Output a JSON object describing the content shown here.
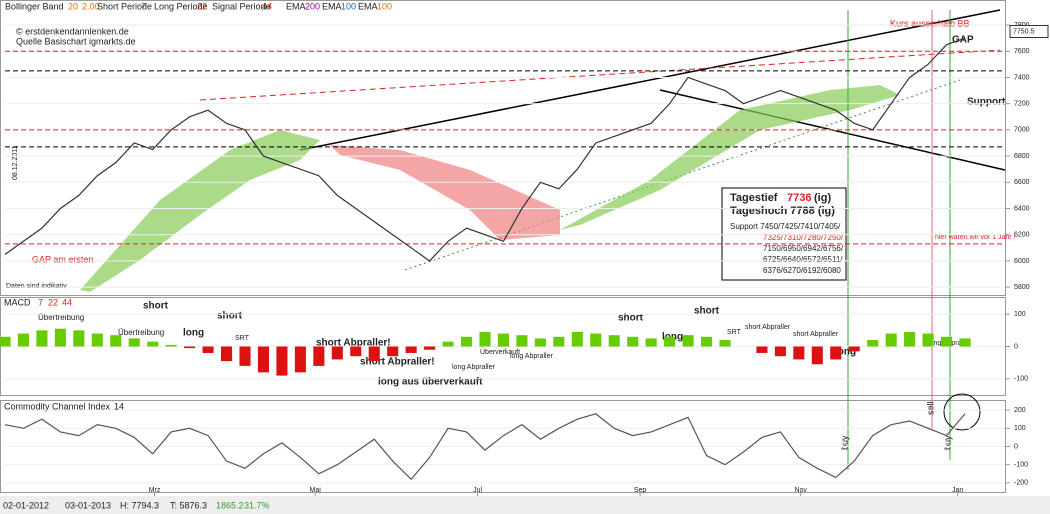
{
  "header": {
    "items": [
      "Bollinger Band",
      "20",
      "2.00",
      "Short Periode",
      "7",
      "Long Periode",
      "22",
      "Signal Periode",
      "44",
      "EMA",
      "200",
      "EMA",
      "100",
      "EMA",
      "100"
    ],
    "copyright": "© erstdenkendannlenken.de",
    "source": "Quelle Basischart igmarkts.de"
  },
  "chart_data": [
    {
      "type": "line",
      "name": "price",
      "values": [
        6050,
        6150,
        6250,
        6400,
        6500,
        6650,
        6750,
        6900,
        6850,
        7000,
        7100,
        7150,
        7050,
        7000,
        6800,
        6750,
        6700,
        6650,
        6500,
        6400,
        6300,
        6200,
        6100,
        6000,
        6150,
        6250,
        6200,
        6150,
        6400,
        6600,
        6550,
        6700,
        6900,
        6950,
        7000,
        7050,
        7200,
        7400,
        7350,
        7300,
        7200,
        7250,
        7300,
        7250,
        7200,
        7150,
        7050,
        7000,
        7200,
        7400,
        7500,
        7650,
        7700
      ],
      "color": "#333333",
      "xlim": [
        0,
        52
      ],
      "ylim": [
        5740,
        7930
      ],
      "yticks": [
        5800,
        6000,
        6200,
        6400,
        6600,
        6800,
        7000,
        7200,
        7400,
        7600,
        7800
      ],
      "last_price": 7750.5,
      "levels": [
        {
          "value": 7600,
          "color": "#e02020"
        },
        {
          "value": 7450,
          "color": "#000000"
        },
        {
          "value": 7000,
          "color": "#e02020"
        },
        {
          "value": 6870,
          "color": "#000000"
        },
        {
          "value": 6130,
          "color": "#e02020"
        }
      ],
      "annotations": [
        "Kurs ausserhalb BB",
        "GAP",
        "Support",
        "hier waren wir vor 1 Jahr !",
        "GAP am ersten",
        "Daten sind indikativ",
        "08.12.2011"
      ],
      "info": {
        "low_label": "Tagestief",
        "low": "7736",
        "low_src": "(ig)",
        "high": "Tageshoch 7788 (ig)",
        "support": [
          "Support 7450/7425/7410/7405/",
          "7325/7310/7280/7250/",
          "7150/6950/6942/6756/",
          "6725/6640/6572/6511/",
          "6376/6270/6192/6080"
        ]
      }
    },
    {
      "type": "bar",
      "name": "MACD",
      "params": [
        "7",
        "22",
        "44"
      ],
      "values": [
        30,
        40,
        50,
        55,
        50,
        40,
        35,
        25,
        15,
        5,
        -5,
        -20,
        -45,
        -60,
        -80,
        -90,
        -80,
        -60,
        -40,
        -30,
        -45,
        -30,
        -20,
        -10,
        15,
        30,
        45,
        40,
        35,
        25,
        30,
        45,
        40,
        35,
        30,
        25,
        30,
        35,
        30,
        20,
        0,
        -20,
        -30,
        -40,
        -55,
        -40,
        -15,
        20,
        40,
        45,
        40,
        30,
        25
      ],
      "colors": [
        "#66cc00",
        "#dd1111"
      ],
      "xlim": [
        0,
        52
      ],
      "ylim": [
        -150,
        150
      ],
      "yticks": [
        100,
        0,
        -100
      ],
      "annotations": [
        "Übertreibung",
        "Übertreibung",
        "short",
        "long",
        "short",
        "SRT",
        "short Abpraller!",
        "short Abpraller!",
        "long aus überverkauft",
        "Überverkauft",
        "long Abpraller",
        "long Abpraller",
        "short",
        "long",
        "short",
        "SRT",
        "short Abpraller",
        "short Abpraller",
        "long",
        "long Abpraller"
      ]
    },
    {
      "type": "line",
      "name": "Commodity Channel Index",
      "params": [
        "14"
      ],
      "values": [
        120,
        100,
        150,
        80,
        60,
        120,
        100,
        50,
        -40,
        80,
        100,
        60,
        -80,
        -120,
        -40,
        20,
        -60,
        -150,
        -100,
        -30,
        40,
        -80,
        -180,
        -60,
        100,
        80,
        -20,
        60,
        120,
        40,
        100,
        150,
        180,
        100,
        60,
        80,
        120,
        160,
        -50,
        -100,
        -30,
        50,
        80,
        -60,
        -120,
        -170,
        -80,
        60,
        120,
        140,
        100,
        60,
        180
      ],
      "color": "#555555",
      "xlim": [
        0,
        52
      ],
      "ylim": [
        -250,
        250
      ],
      "yticks": [
        200,
        100,
        0,
        -100,
        -200
      ],
      "xticks": [
        {
          "value": 8.1,
          "label": "Mrz"
        },
        {
          "value": 16.8,
          "label": "Mai"
        },
        {
          "value": 25.6,
          "label": "Jul"
        },
        {
          "value": 34.4,
          "label": "Sep"
        },
        {
          "value": 43.1,
          "label": "Nov"
        },
        {
          "value": 51.6,
          "label": "Jan"
        }
      ],
      "annotations": [
        "buy",
        "sell",
        "buy"
      ]
    }
  ],
  "status": [
    "02-01-2012",
    "03-01-2013",
    "H: 7794.3",
    "T: 5876.3",
    "1865.2",
    "31.7%"
  ]
}
